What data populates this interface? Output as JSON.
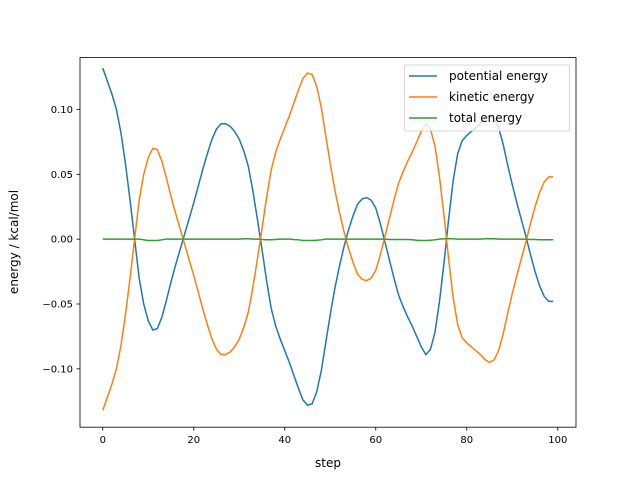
{
  "chart_data": {
    "type": "line",
    "title": "",
    "xlabel": "step",
    "ylabel": "energy / kcal/mol",
    "xlim": [
      -5,
      104
    ],
    "ylim": [
      -0.145,
      0.14
    ],
    "xticks": [
      0,
      20,
      40,
      60,
      80,
      100
    ],
    "xtick_labels": [
      "0",
      "20",
      "40",
      "60",
      "80",
      "100"
    ],
    "yticks": [
      -0.1,
      -0.05,
      0.0,
      0.05,
      0.1
    ],
    "ytick_labels": [
      "−0.10",
      "−0.05",
      "0.00",
      "0.05",
      "0.10"
    ],
    "grid": false,
    "legend_position": "top-right",
    "series": [
      {
        "name": "potential energy",
        "color": "#1f77b4",
        "values": [
          0.132,
          0.122,
          0.112,
          0.1,
          0.082,
          0.058,
          0.03,
          0.0,
          -0.03,
          -0.05,
          -0.063,
          -0.07,
          -0.069,
          -0.06,
          -0.047,
          -0.033,
          -0.02,
          -0.008,
          0.004,
          0.016,
          0.028,
          0.041,
          0.054,
          0.066,
          0.077,
          0.085,
          0.089,
          0.089,
          0.087,
          0.083,
          0.077,
          0.068,
          0.056,
          0.037,
          0.015,
          -0.008,
          -0.032,
          -0.053,
          -0.067,
          -0.077,
          -0.086,
          -0.095,
          -0.105,
          -0.115,
          -0.124,
          -0.128,
          -0.127,
          -0.118,
          -0.102,
          -0.08,
          -0.058,
          -0.038,
          -0.021,
          -0.006,
          0.007,
          0.018,
          0.027,
          0.031,
          0.032,
          0.03,
          0.024,
          0.012,
          -0.002,
          -0.016,
          -0.03,
          -0.043,
          -0.052,
          -0.06,
          -0.067,
          -0.075,
          -0.083,
          -0.089,
          -0.085,
          -0.072,
          -0.048,
          -0.018,
          0.015,
          0.045,
          0.066,
          0.076,
          0.08,
          0.083,
          0.086,
          0.089,
          0.093,
          0.095,
          0.093,
          0.086,
          0.073,
          0.057,
          0.042,
          0.028,
          0.015,
          0.002,
          -0.012,
          -0.025,
          -0.036,
          -0.044,
          -0.048,
          -0.048
        ]
      },
      {
        "name": "kinetic energy",
        "color": "#ff7f0e",
        "values": [
          -0.132,
          -0.122,
          -0.112,
          -0.1,
          -0.082,
          -0.058,
          -0.03,
          0.0,
          0.03,
          0.05,
          0.063,
          0.07,
          0.069,
          0.06,
          0.047,
          0.033,
          0.02,
          0.008,
          -0.004,
          -0.016,
          -0.028,
          -0.041,
          -0.054,
          -0.066,
          -0.077,
          -0.085,
          -0.089,
          -0.089,
          -0.087,
          -0.083,
          -0.077,
          -0.068,
          -0.056,
          -0.037,
          -0.015,
          0.008,
          0.032,
          0.053,
          0.067,
          0.077,
          0.086,
          0.095,
          0.105,
          0.115,
          0.124,
          0.128,
          0.127,
          0.118,
          0.102,
          0.08,
          0.058,
          0.038,
          0.021,
          0.006,
          -0.007,
          -0.018,
          -0.027,
          -0.031,
          -0.032,
          -0.03,
          -0.024,
          -0.012,
          0.002,
          0.016,
          0.03,
          0.043,
          0.052,
          0.06,
          0.067,
          0.075,
          0.083,
          0.089,
          0.085,
          0.072,
          0.048,
          0.018,
          -0.015,
          -0.045,
          -0.066,
          -0.076,
          -0.08,
          -0.083,
          -0.086,
          -0.089,
          -0.093,
          -0.095,
          -0.093,
          -0.086,
          -0.073,
          -0.057,
          -0.042,
          -0.028,
          -0.015,
          -0.002,
          0.012,
          0.025,
          0.036,
          0.044,
          0.048,
          0.048
        ]
      },
      {
        "name": "total energy",
        "color": "#2ca02c",
        "values": [
          0,
          0,
          0,
          0,
          0,
          0,
          0,
          0,
          0,
          -0.0005,
          -0.001,
          -0.001,
          -0.001,
          -0.0005,
          0,
          0,
          0,
          0,
          0,
          0,
          0,
          0,
          0,
          0,
          0,
          0,
          0,
          0,
          0,
          0,
          0,
          0.0003,
          0.0003,
          0,
          0,
          -0.0003,
          -0.0005,
          -0.0005,
          -0.0003,
          0,
          0,
          0,
          -0.0003,
          -0.0005,
          -0.001,
          -0.001,
          -0.001,
          -0.0008,
          -0.0005,
          0,
          0,
          0,
          0,
          0,
          0,
          0,
          0,
          0,
          0,
          0,
          0,
          0,
          0,
          -0.0003,
          -0.0003,
          -0.0003,
          -0.0003,
          -0.0003,
          -0.0005,
          -0.0008,
          -0.001,
          -0.001,
          -0.0008,
          -0.0005,
          0,
          0.0003,
          0.0003,
          0.0003,
          0,
          0,
          0,
          0,
          0,
          0,
          0.0003,
          0.0003,
          0.0003,
          0,
          0,
          0,
          0,
          0,
          0,
          0,
          -0.0003,
          -0.0003,
          -0.0005,
          -0.0005,
          -0.0005,
          -0.0005
        ]
      }
    ]
  }
}
